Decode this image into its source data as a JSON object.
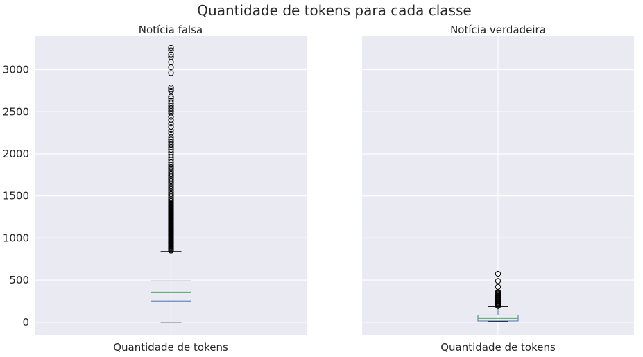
{
  "chart_data": {
    "type": "box",
    "suptitle": "Quantidade de tokens para cada classe",
    "sharey": true,
    "ylim": [
      -150,
      3400
    ],
    "yticks": [
      0,
      500,
      1000,
      1500,
      2000,
      2500,
      3000
    ],
    "grid": true,
    "panels": [
      {
        "title": "Notícia falsa",
        "xtick_label": "Quantidade de tokens",
        "stats": {
          "whisker_low": 0,
          "q1": 252,
          "median": 358,
          "q3": 490,
          "whisker_high": 840
        },
        "outliers": [
          850,
          860,
          870,
          880,
          890,
          900,
          910,
          920,
          930,
          940,
          950,
          960,
          970,
          980,
          990,
          1000,
          1010,
          1020,
          1030,
          1040,
          1050,
          1060,
          1070,
          1080,
          1090,
          1100,
          1110,
          1120,
          1130,
          1140,
          1150,
          1160,
          1170,
          1180,
          1190,
          1200,
          1210,
          1220,
          1230,
          1240,
          1250,
          1260,
          1270,
          1280,
          1290,
          1300,
          1310,
          1320,
          1330,
          1340,
          1350,
          1360,
          1370,
          1380,
          1390,
          1400,
          1410,
          1420,
          1440,
          1460,
          1480,
          1500,
          1520,
          1540,
          1560,
          1580,
          1600,
          1620,
          1640,
          1660,
          1680,
          1700,
          1720,
          1740,
          1760,
          1780,
          1800,
          1820,
          1840,
          1870,
          1900,
          1930,
          1960,
          1990,
          2020,
          2050,
          2080,
          2110,
          2140,
          2170,
          2200,
          2240,
          2280,
          2320,
          2360,
          2400,
          2440,
          2480,
          2510,
          2540,
          2570,
          2600,
          2630,
          2660,
          2680,
          2750,
          2770,
          2790,
          2960,
          3030,
          3090,
          3150,
          3180,
          3230,
          3260
        ]
      },
      {
        "title": "Notícia verdadeira",
        "xtick_label": "Quantidade de tokens",
        "stats": {
          "whisker_low": 10,
          "q1": 15,
          "median": 45,
          "q3": 85,
          "whisker_high": 185
        },
        "outliers": [
          190,
          200,
          210,
          220,
          230,
          240,
          250,
          260,
          270,
          280,
          290,
          300,
          310,
          320,
          330,
          340,
          350,
          360,
          420,
          490,
          575
        ]
      }
    ]
  },
  "colors": {
    "axes_bg": "#eaeaf2",
    "grid": "#ffffff",
    "box": "#4c72b0",
    "median": "#55a868",
    "whisker_cap": "#000000",
    "flier": "#000000"
  }
}
